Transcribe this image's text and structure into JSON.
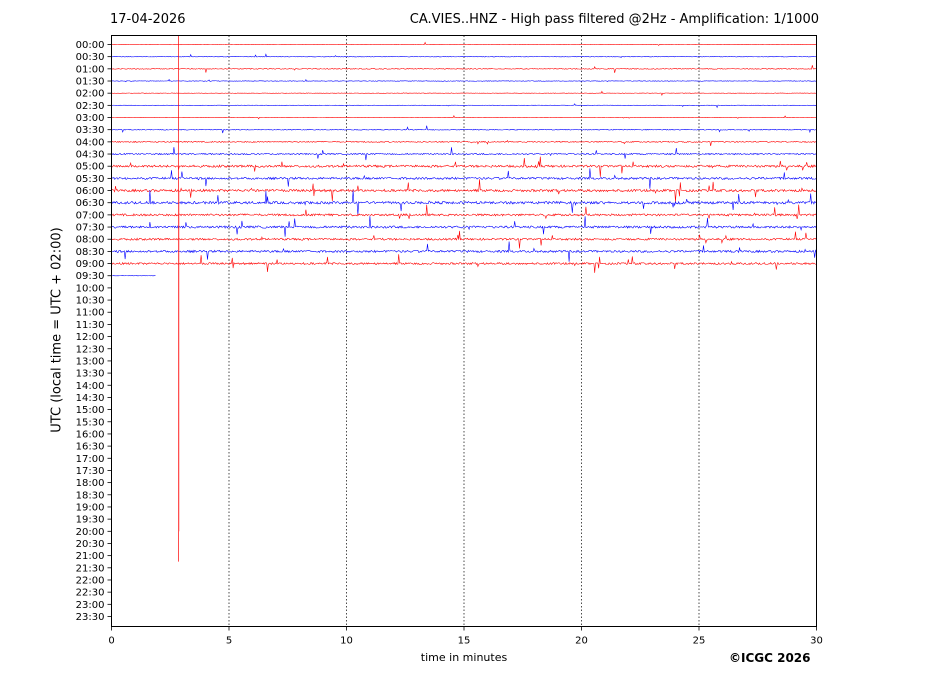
{
  "header": {
    "date": "17-04-2026",
    "title": "CA.VIES..HNZ - High pass filtered @2Hz - Amplification: 1/1000"
  },
  "footer": {
    "copyright": "©ICGC 2026"
  },
  "chart_data": {
    "type": "line",
    "title": "CA.VIES..HNZ - High pass filtered @2Hz - Amplification: 1/1000",
    "xlabel": "time in minutes",
    "ylabel": "UTC (local time = UTC + 02:00)",
    "xlim": [
      0,
      30
    ],
    "x_ticks": [
      "0",
      "5",
      "10",
      "15",
      "20",
      "25",
      "30"
    ],
    "x_tick_values": [
      0,
      5,
      10,
      15,
      20,
      25,
      30
    ],
    "y_tick_labels": [
      "00:00",
      "00:30",
      "01:00",
      "01:30",
      "02:00",
      "02:30",
      "03:00",
      "03:30",
      "04:00",
      "04:30",
      "05:00",
      "05:30",
      "06:00",
      "06:30",
      "07:00",
      "07:30",
      "08:00",
      "08:30",
      "09:00",
      "09:30",
      "10:00",
      "10:30",
      "11:00",
      "11:30",
      "12:00",
      "12:30",
      "13:00",
      "13:30",
      "14:00",
      "14:30",
      "15:00",
      "15:30",
      "16:00",
      "16:30",
      "17:00",
      "17:30",
      "18:00",
      "18:30",
      "19:00",
      "19:30",
      "20:00",
      "20:30",
      "21:00",
      "21:30",
      "22:00",
      "22:30",
      "23:00",
      "23:30"
    ],
    "grid": "vertical dotted at x ticks",
    "trace_colors": [
      "#ff0000",
      "#0000ff"
    ],
    "traces_recorded": 20,
    "last_trace_end_minute": 1.9,
    "activity_per_row": [
      0.3,
      0.4,
      0.6,
      0.4,
      0.3,
      0.3,
      0.3,
      0.6,
      0.8,
      1.0,
      1.6,
      1.5,
      1.7,
      1.8,
      1.5,
      1.6,
      1.4,
      1.5,
      1.4,
      0.2
    ],
    "notable_event": {
      "minute": 2.85,
      "row_start": 0,
      "row_end": 42
    }
  }
}
